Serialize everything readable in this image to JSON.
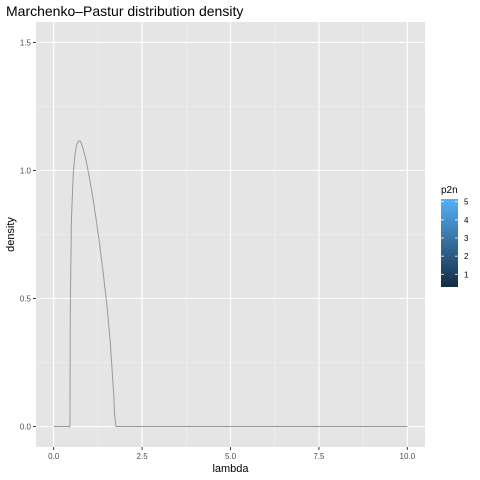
{
  "chart_data": {
    "type": "line",
    "title": "Marchenko–Pastur distribution density",
    "xlabel": "lambda",
    "ylabel": "density",
    "xlim": [
      -0.5,
      10.5
    ],
    "ylim": [
      -0.08,
      1.58
    ],
    "x_ticks": [
      0,
      2.5,
      5,
      7.5,
      10
    ],
    "x_tick_labels": [
      "0.0",
      "2.5",
      "5.0",
      "7.5",
      "10.0"
    ],
    "y_ticks": [
      0,
      0.5,
      1,
      1.5
    ],
    "y_tick_labels": [
      "0.0",
      "0.5",
      "1.0",
      "1.5"
    ],
    "grid": true,
    "background": "#e5e5e5",
    "line_color": "#999999",
    "series": [
      {
        "x": [
          0,
          0.46,
          0.47,
          0.5,
          0.55,
          0.6,
          0.65,
          0.7,
          0.75,
          0.8,
          0.9,
          1.0,
          1.1,
          1.2,
          1.3,
          1.4,
          1.5,
          1.6,
          1.7,
          1.72,
          1.76,
          1.8,
          10
        ],
        "y": [
          0,
          0,
          0.45,
          0.8,
          0.98,
          1.06,
          1.1,
          1.115,
          1.115,
          1.1,
          1.05,
          0.98,
          0.9,
          0.81,
          0.71,
          0.6,
          0.48,
          0.33,
          0.12,
          0.05,
          0.0,
          0,
          0
        ]
      }
    ],
    "legend": {
      "title": "p2n",
      "type": "colorbar",
      "placement": "right",
      "range": [
        0.3,
        5.15
      ],
      "breaks": [
        1,
        2,
        3,
        4,
        5
      ],
      "break_labels": [
        "1",
        "2",
        "3",
        "4",
        "5"
      ],
      "color_low": "#132b43",
      "color_high": "#56b1f7"
    }
  }
}
